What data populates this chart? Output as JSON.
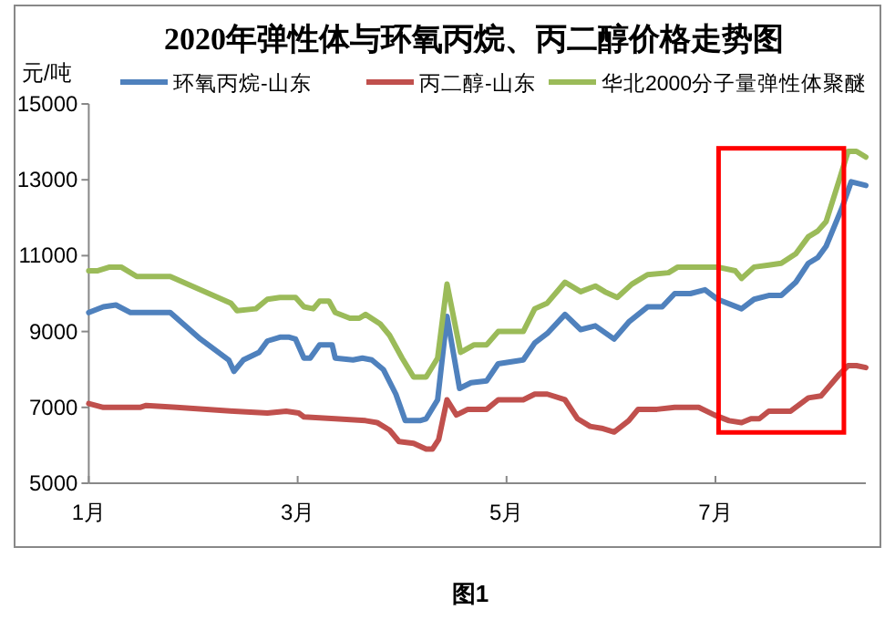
{
  "chart_data": {
    "type": "line",
    "title": "2020年弹性体与环氧丙烷、丙二醇价格走势图",
    "ylabel": "元/吨",
    "annotations": [
      "图1"
    ],
    "xlim": [
      1,
      8.44
    ],
    "xticks": [
      {
        "value": 1,
        "label": "1月"
      },
      {
        "value": 3,
        "label": "3月"
      },
      {
        "value": 5,
        "label": "5月"
      },
      {
        "value": 7,
        "label": "7月"
      }
    ],
    "ylim": [
      5000,
      15000
    ],
    "yticks": [
      5000,
      7000,
      9000,
      11000,
      13000,
      15000
    ],
    "grid": false,
    "legend": "top",
    "marker": "none",
    "line_style": "solid",
    "series": [
      {
        "name": "环氧丙烷-山东",
        "color": "#4f81bd",
        "x": [
          1,
          1.14,
          1.26,
          1.4,
          1.78,
          2.07,
          2.34,
          2.39,
          2.48,
          2.63,
          2.71,
          2.83,
          2.92,
          2.98,
          3.06,
          3.12,
          3.21,
          3.33,
          3.36,
          3.53,
          3.62,
          3.71,
          3.82,
          3.94,
          4.03,
          4.17,
          4.23,
          4.34,
          4.43,
          4.55,
          4.66,
          4.81,
          4.92,
          5.16,
          5.27,
          5.39,
          5.56,
          5.71,
          5.85,
          6.03,
          6.17,
          6.35,
          6.49,
          6.61,
          6.76,
          6.9,
          7.02,
          7.25,
          7.37,
          7.51,
          7.63,
          7.77,
          7.89,
          7.98,
          8.06,
          8.21,
          8.3,
          8.44
        ],
        "values": [
          9500,
          9650,
          9700,
          9500,
          9500,
          8800,
          8250,
          7950,
          8250,
          8450,
          8750,
          8850,
          8850,
          8800,
          8300,
          8300,
          8650,
          8650,
          8300,
          8250,
          8300,
          8250,
          8000,
          7350,
          6650,
          6650,
          6700,
          7200,
          9400,
          7500,
          7650,
          7700,
          8150,
          8250,
          8700,
          8950,
          9450,
          9050,
          9150,
          8800,
          9250,
          9650,
          9650,
          10000,
          10000,
          10100,
          9850,
          9600,
          9850,
          9950,
          9950,
          10300,
          10800,
          10950,
          11250,
          12250,
          12950,
          12850
        ]
      },
      {
        "name": "丙二醇-山东",
        "color": "#c0504d",
        "x": [
          1,
          1.14,
          1.49,
          1.55,
          1.84,
          2.39,
          2.71,
          2.89,
          3.01,
          3.06,
          3.36,
          3.65,
          3.76,
          3.88,
          3.97,
          4.11,
          4.23,
          4.29,
          4.35,
          4.43,
          4.52,
          4.63,
          4.81,
          4.92,
          5.16,
          5.27,
          5.39,
          5.56,
          5.68,
          5.8,
          5.91,
          6.03,
          6.17,
          6.26,
          6.44,
          6.61,
          6.84,
          6.99,
          7.13,
          7.25,
          7.34,
          7.42,
          7.51,
          7.72,
          7.89,
          8.01,
          8.18,
          8.27,
          8.35,
          8.44
        ],
        "values": [
          7100,
          7000,
          7000,
          7050,
          7000,
          6900,
          6850,
          6900,
          6850,
          6750,
          6700,
          6650,
          6600,
          6400,
          6100,
          6050,
          5900,
          5900,
          6150,
          7200,
          6800,
          6950,
          6950,
          7200,
          7200,
          7350,
          7350,
          7200,
          6700,
          6500,
          6450,
          6350,
          6650,
          6950,
          6950,
          7000,
          7000,
          6800,
          6650,
          6600,
          6700,
          6700,
          6900,
          6900,
          7250,
          7300,
          7850,
          8100,
          8100,
          8050
        ]
      },
      {
        "name": "华北2000分子量弹性体聚醚",
        "color": "#9bbb59",
        "x": [
          1,
          1.08,
          1.2,
          1.31,
          1.46,
          1.78,
          2.36,
          2.42,
          2.6,
          2.71,
          2.83,
          2.98,
          3.06,
          3.15,
          3.21,
          3.3,
          3.36,
          3.5,
          3.59,
          3.65,
          3.79,
          3.88,
          4.0,
          4.11,
          4.23,
          4.34,
          4.43,
          4.56,
          4.69,
          4.81,
          4.92,
          5.16,
          5.27,
          5.39,
          5.56,
          5.71,
          5.85,
          5.94,
          6.06,
          6.2,
          6.35,
          6.55,
          6.64,
          6.84,
          7.02,
          7.19,
          7.25,
          7.37,
          7.51,
          7.63,
          7.77,
          7.89,
          7.98,
          8.06,
          8.18,
          8.27,
          8.35,
          8.44
        ],
        "values": [
          10600,
          10600,
          10700,
          10700,
          10450,
          10450,
          9750,
          9550,
          9600,
          9850,
          9900,
          9900,
          9650,
          9600,
          9800,
          9800,
          9500,
          9350,
          9350,
          9450,
          9200,
          8900,
          8300,
          7800,
          7800,
          8300,
          10250,
          8450,
          8650,
          8650,
          9000,
          9000,
          9600,
          9750,
          10300,
          10050,
          10200,
          10050,
          9900,
          10250,
          10500,
          10550,
          10700,
          10700,
          10700,
          10600,
          10400,
          10700,
          10750,
          10800,
          11050,
          11500,
          11650,
          11900,
          12950,
          13750,
          13750,
          13600
        ]
      }
    ]
  }
}
